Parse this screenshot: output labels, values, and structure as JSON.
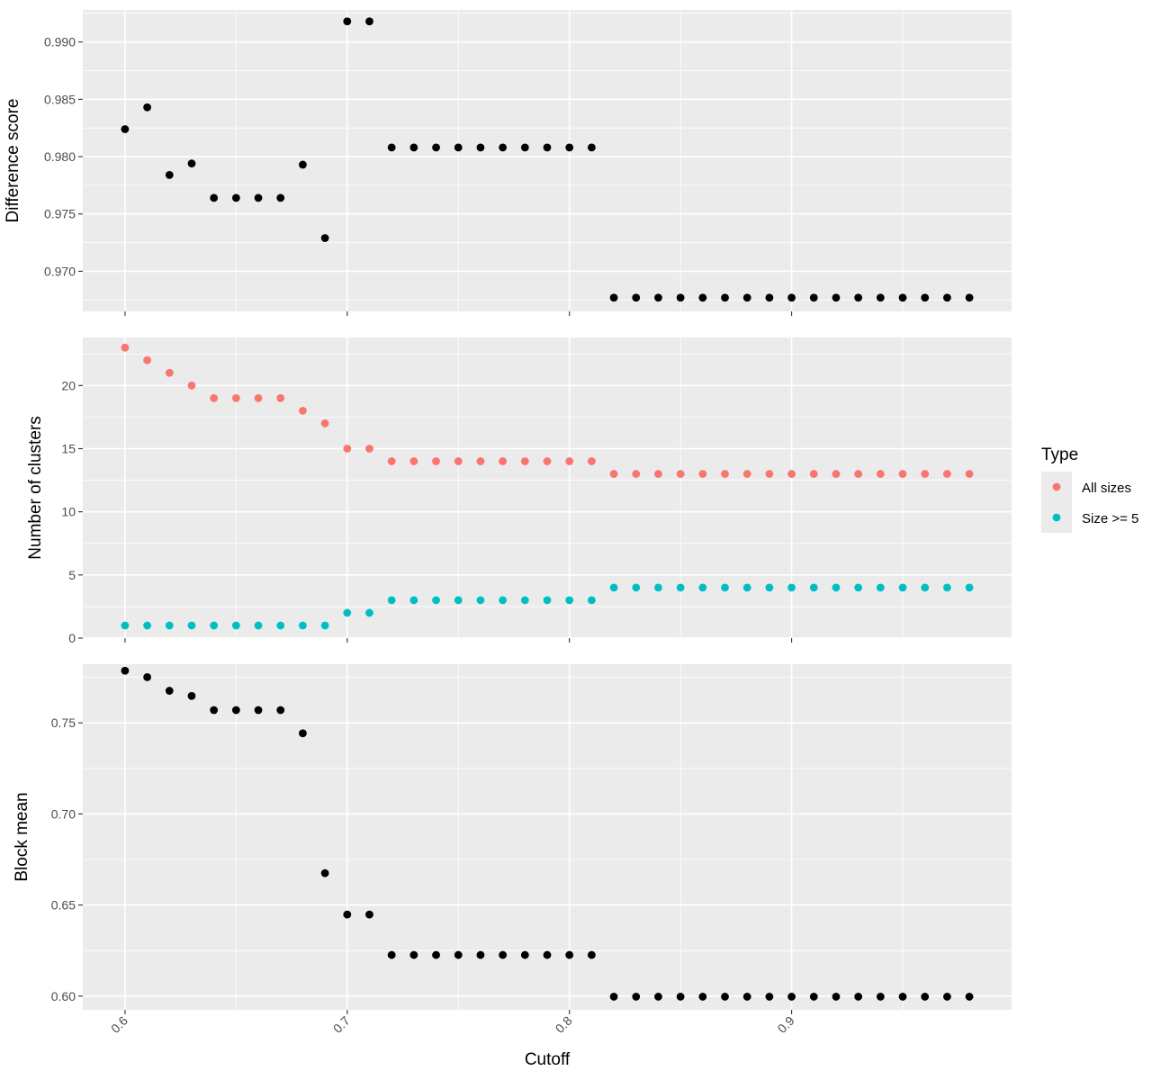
{
  "chart_data": {
    "type": "scatter",
    "shared_x": {
      "xlabel": "Cutoff",
      "x": [
        0.6,
        0.61,
        0.62,
        0.63,
        0.64,
        0.65,
        0.66,
        0.67,
        0.68,
        0.69,
        0.7,
        0.71,
        0.72,
        0.73,
        0.74,
        0.75,
        0.76,
        0.77,
        0.78,
        0.79,
        0.8,
        0.81,
        0.82,
        0.83,
        0.84,
        0.85,
        0.86,
        0.87,
        0.88,
        0.89,
        0.9,
        0.91,
        0.92,
        0.93,
        0.94,
        0.95,
        0.96,
        0.97,
        0.98
      ],
      "xlim": [
        0.581,
        0.999
      ],
      "xticks": [
        0.6,
        0.7,
        0.8,
        0.9
      ],
      "xtick_labels": [
        "0.6",
        "0.7",
        "0.8",
        "0.9"
      ]
    },
    "panels": [
      {
        "ylabel": "Difference score",
        "ylim": [
          0.9665,
          0.9928
        ],
        "yticks": [
          0.97,
          0.975,
          0.98,
          0.985,
          0.99
        ],
        "ytick_labels": [
          "0.970",
          "0.975",
          "0.980",
          "0.985",
          "0.990"
        ],
        "series": [
          {
            "color": "#000000",
            "values": [
              0.9824,
              0.9843,
              0.9784,
              0.9794,
              0.9764,
              0.9764,
              0.9764,
              0.9764,
              0.9793,
              0.9729,
              0.9918,
              0.9918,
              0.9808,
              0.9808,
              0.9808,
              0.9808,
              0.9808,
              0.9808,
              0.9808,
              0.9808,
              0.9808,
              0.9808,
              0.9677,
              0.9677,
              0.9677,
              0.9677,
              0.9677,
              0.9677,
              0.9677,
              0.9677,
              0.9677,
              0.9677,
              0.9677,
              0.9677,
              0.9677,
              0.9677,
              0.9677,
              0.9677,
              0.9677
            ]
          }
        ]
      },
      {
        "ylabel": "Number of clusters",
        "ylim": [
          0,
          23.8
        ],
        "yticks": [
          0,
          5,
          10,
          15,
          20
        ],
        "ytick_labels": [
          "0",
          "5",
          "10",
          "15",
          "20"
        ],
        "series": [
          {
            "name": "All sizes",
            "color": "#F8766D",
            "values": [
              23,
              22,
              21,
              20,
              19,
              19,
              19,
              19,
              18,
              17,
              15,
              15,
              14,
              14,
              14,
              14,
              14,
              14,
              14,
              14,
              14,
              14,
              13,
              13,
              13,
              13,
              13,
              13,
              13,
              13,
              13,
              13,
              13,
              13,
              13,
              13,
              13,
              13,
              13
            ]
          },
          {
            "name": "Size >= 5",
            "color": "#00BFC4",
            "values": [
              1,
              1,
              1,
              1,
              1,
              1,
              1,
              1,
              1,
              1,
              2,
              2,
              3,
              3,
              3,
              3,
              3,
              3,
              3,
              3,
              3,
              3,
              4,
              4,
              4,
              4,
              4,
              4,
              4,
              4,
              4,
              4,
              4,
              4,
              4,
              4,
              4,
              4,
              4
            ]
          }
        ]
      },
      {
        "ylabel": "Block mean",
        "ylim": [
          0.5925,
          0.7822
        ],
        "yticks": [
          0.6,
          0.65,
          0.7,
          0.75
        ],
        "ytick_labels": [
          "0.60",
          "0.65",
          "0.70",
          "0.75"
        ],
        "series": [
          {
            "color": "#000000",
            "values": [
              0.7786,
              0.7751,
              0.7676,
              0.7648,
              0.757,
              0.757,
              0.757,
              0.757,
              0.7443,
              0.6675,
              0.6448,
              0.6448,
              0.6226,
              0.6226,
              0.6226,
              0.6226,
              0.6226,
              0.6226,
              0.6226,
              0.6226,
              0.6226,
              0.6226,
              0.5997,
              0.5997,
              0.5997,
              0.5997,
              0.5997,
              0.5997,
              0.5997,
              0.5997,
              0.5997,
              0.5997,
              0.5997,
              0.5997,
              0.5997,
              0.5997,
              0.5997,
              0.5997,
              0.5997
            ]
          }
        ]
      }
    ],
    "legend": {
      "title": "Type",
      "placement": "right",
      "entries": [
        {
          "label": "All sizes",
          "color": "#F8766D"
        },
        {
          "label": "Size >= 5",
          "color": "#00BFC4"
        }
      ]
    },
    "grid": true,
    "panel_background": "#EBEBEB",
    "grid_color": "#FFFFFF"
  }
}
